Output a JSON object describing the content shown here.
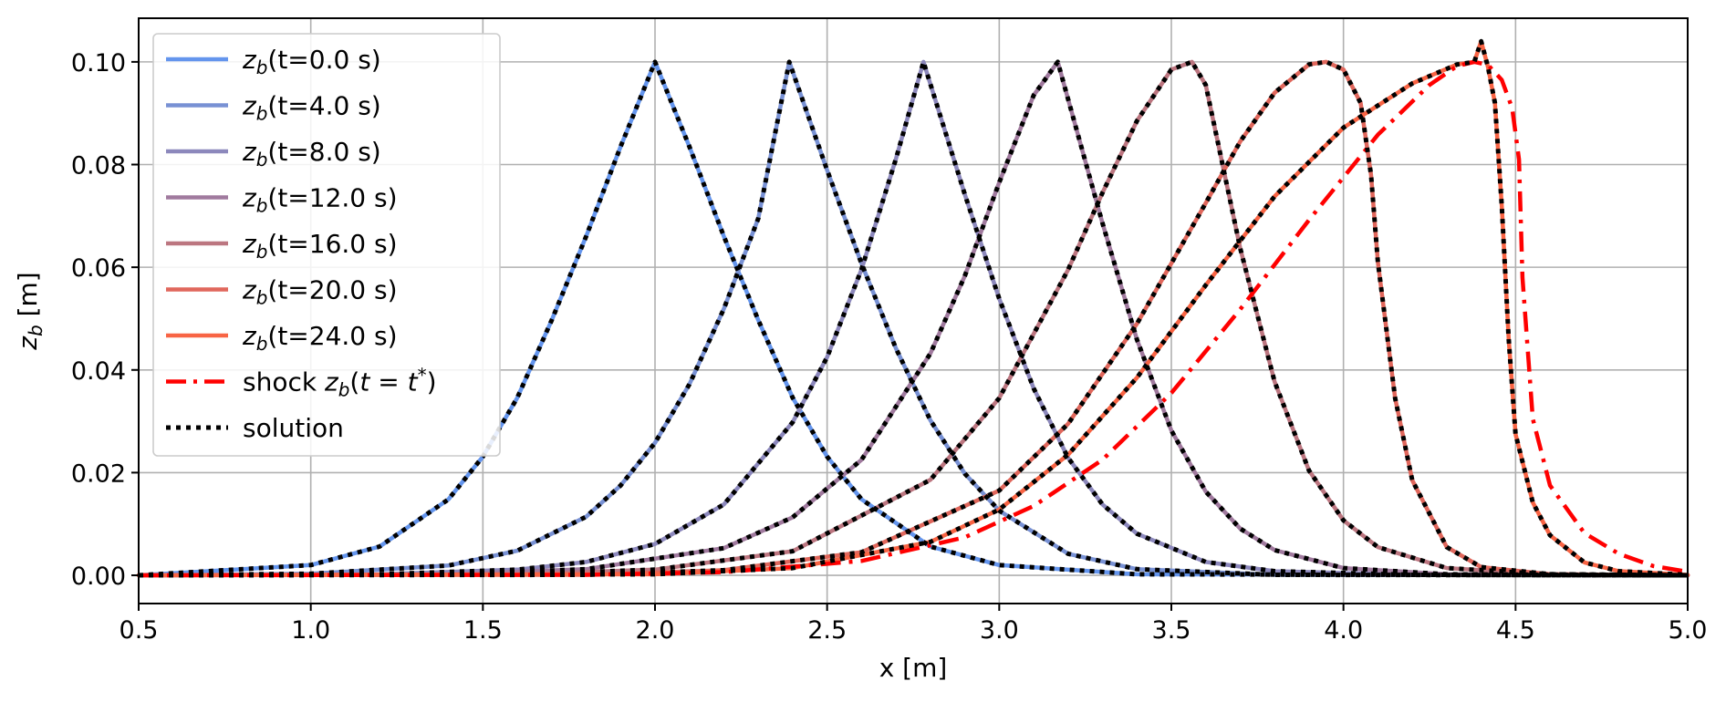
{
  "chart_data": {
    "type": "line",
    "xlabel": "x [m]",
    "ylabel": "z_b [m]",
    "xlim": [
      0.5,
      5.0
    ],
    "ylim": [
      -0.0055,
      0.1085
    ],
    "xticks": [
      "0.5",
      "1.0",
      "1.5",
      "2.0",
      "2.5",
      "3.0",
      "3.5",
      "4.0",
      "4.5",
      "5.0"
    ],
    "yticks": [
      "0.00",
      "0.02",
      "0.04",
      "0.06",
      "0.08",
      "0.10"
    ],
    "grid": true,
    "legend_position": "top-left",
    "legend": [
      {
        "label": "z_b(t=0.0 s)",
        "color": "#6495ED",
        "style": "solid"
      },
      {
        "label": "z_b(t=4.0 s)",
        "color": "#7891D4",
        "style": "solid"
      },
      {
        "label": "z_b(t=8.0 s)",
        "color": "#8C88BC",
        "style": "solid"
      },
      {
        "label": "z_b(t=12.0 s)",
        "color": "#A07A9E",
        "style": "solid"
      },
      {
        "label": "z_b(t=16.0 s)",
        "color": "#BC7680",
        "style": "solid"
      },
      {
        "label": "z_b(t=20.0 s)",
        "color": "#E0675C",
        "style": "solid"
      },
      {
        "label": "z_b(t=24.0 s)",
        "color": "#F86444",
        "style": "solid"
      },
      {
        "label": "shock z_b(t=t*)",
        "color": "#FF0000",
        "style": "dashdot"
      },
      {
        "label": "solution",
        "color": "#000000",
        "style": "dotted"
      }
    ],
    "series": [
      {
        "name": "z_b(t=0.0 s)",
        "color": "#6495ED",
        "x": [
          0.5,
          1.0,
          1.2,
          1.4,
          1.5,
          1.6,
          1.7,
          1.8,
          1.9,
          2.0,
          2.1,
          2.2,
          2.3,
          2.4,
          2.5,
          2.6,
          2.8,
          3.0,
          3.4,
          5.0
        ],
        "y": [
          0.0,
          0.002,
          0.0056,
          0.0148,
          0.0231,
          0.0346,
          0.0497,
          0.066,
          0.0835,
          0.1,
          0.0835,
          0.066,
          0.0497,
          0.0346,
          0.0231,
          0.0148,
          0.0056,
          0.002,
          0.0002,
          0.0
        ]
      },
      {
        "name": "z_b(t=4.0 s)",
        "color": "#7891D4",
        "x": [
          0.5,
          1.0,
          1.4,
          1.6,
          1.8,
          1.9,
          2.0,
          2.1,
          2.2,
          2.3,
          2.39,
          2.5,
          2.6,
          2.7,
          2.8,
          2.9,
          3.0,
          3.2,
          3.4,
          3.8,
          5.0
        ],
        "y": [
          0.0,
          0.0003,
          0.0019,
          0.0048,
          0.0114,
          0.0175,
          0.0258,
          0.0372,
          0.0519,
          0.0695,
          0.1,
          0.0789,
          0.0607,
          0.0442,
          0.0302,
          0.0198,
          0.0126,
          0.0042,
          0.0012,
          0.0001,
          0.0
        ]
      },
      {
        "name": "z_b(t=8.0 s)",
        "color": "#8C88BC",
        "x": [
          0.5,
          1.2,
          1.6,
          1.8,
          2.0,
          2.2,
          2.4,
          2.5,
          2.6,
          2.7,
          2.78,
          2.9,
          3.0,
          3.1,
          3.2,
          3.3,
          3.4,
          3.6,
          3.8,
          4.2,
          5.0
        ],
        "y": [
          0.0,
          0.0002,
          0.0011,
          0.0026,
          0.0061,
          0.0138,
          0.0298,
          0.0425,
          0.0596,
          0.0811,
          0.1,
          0.0742,
          0.0539,
          0.0364,
          0.0229,
          0.0138,
          0.0081,
          0.0026,
          0.0008,
          0.0001,
          0.0
        ]
      },
      {
        "name": "z_b(t=12.0 s)",
        "color": "#A07A9E",
        "x": [
          0.5,
          1.4,
          1.8,
          2.2,
          2.4,
          2.6,
          2.8,
          2.9,
          3.0,
          3.1,
          3.17,
          3.3,
          3.4,
          3.5,
          3.6,
          3.7,
          3.8,
          4.0,
          4.3,
          5.0
        ],
        "y": [
          0.0,
          0.0002,
          0.0012,
          0.0053,
          0.0113,
          0.0225,
          0.0432,
          0.0583,
          0.0765,
          0.0935,
          0.1,
          0.0686,
          0.0459,
          0.0282,
          0.0163,
          0.0091,
          0.0049,
          0.0014,
          0.0002,
          0.0
        ]
      },
      {
        "name": "z_b(t=16.0 s)",
        "color": "#BC7680",
        "x": [
          0.5,
          1.6,
          2.0,
          2.4,
          2.8,
          3.0,
          3.2,
          3.3,
          3.4,
          3.5,
          3.56,
          3.6,
          3.7,
          3.8,
          3.9,
          4.0,
          4.1,
          4.3,
          4.6,
          5.0
        ],
        "y": [
          0.0,
          0.0002,
          0.0011,
          0.0047,
          0.0186,
          0.0345,
          0.0595,
          0.0745,
          0.0885,
          0.0985,
          0.1,
          0.0955,
          0.0637,
          0.0377,
          0.0204,
          0.0107,
          0.0055,
          0.0014,
          0.0002,
          0.0
        ]
      },
      {
        "name": "z_b(t=20.0 s)",
        "color": "#E0675C",
        "x": [
          0.5,
          1.8,
          2.2,
          2.6,
          3.0,
          3.2,
          3.4,
          3.6,
          3.7,
          3.8,
          3.9,
          3.95,
          4.0,
          4.05,
          4.08,
          4.1,
          4.15,
          4.2,
          4.3,
          4.4,
          4.6,
          5.0
        ],
        "y": [
          0.0,
          0.0001,
          0.001,
          0.0045,
          0.0165,
          0.0295,
          0.049,
          0.0725,
          0.0845,
          0.094,
          0.0995,
          0.1,
          0.0985,
          0.092,
          0.078,
          0.061,
          0.0345,
          0.0185,
          0.0055,
          0.0016,
          0.0002,
          0.0
        ]
      },
      {
        "name": "z_b(t=24.0 s)",
        "color": "#F86444",
        "x": [
          0.5,
          2.0,
          2.4,
          2.8,
          3.0,
          3.2,
          3.4,
          3.6,
          3.8,
          4.0,
          4.2,
          4.33,
          4.38,
          4.4,
          4.42,
          4.44,
          4.46,
          4.48,
          4.5,
          4.55,
          4.6,
          4.7,
          4.8,
          5.0
        ],
        "y": [
          0.0,
          0.0002,
          0.0014,
          0.0065,
          0.0128,
          0.0235,
          0.0385,
          0.0565,
          0.0738,
          0.0872,
          0.0958,
          0.0995,
          0.1,
          0.104,
          0.099,
          0.092,
          0.072,
          0.046,
          0.0275,
          0.0142,
          0.0078,
          0.0025,
          0.0008,
          0.0001
        ]
      },
      {
        "name": "shock z_b(t=t*)",
        "color": "#FF0000",
        "style": "dashdot",
        "x": [
          0.5,
          1.8,
          2.2,
          2.6,
          2.9,
          3.1,
          3.3,
          3.5,
          3.7,
          3.9,
          4.1,
          4.25,
          4.33,
          4.38,
          4.42,
          4.46,
          4.49,
          4.51,
          4.52,
          4.55,
          4.6,
          4.7,
          4.8,
          4.9,
          5.0
        ],
        "y": [
          0.0,
          0.0001,
          0.0006,
          0.0028,
          0.0074,
          0.0135,
          0.0225,
          0.0355,
          0.0518,
          0.0692,
          0.0858,
          0.0955,
          0.0992,
          0.1,
          0.0994,
          0.0965,
          0.091,
          0.081,
          0.058,
          0.0305,
          0.0175,
          0.0082,
          0.0042,
          0.0018,
          0.0007
        ]
      }
    ]
  }
}
